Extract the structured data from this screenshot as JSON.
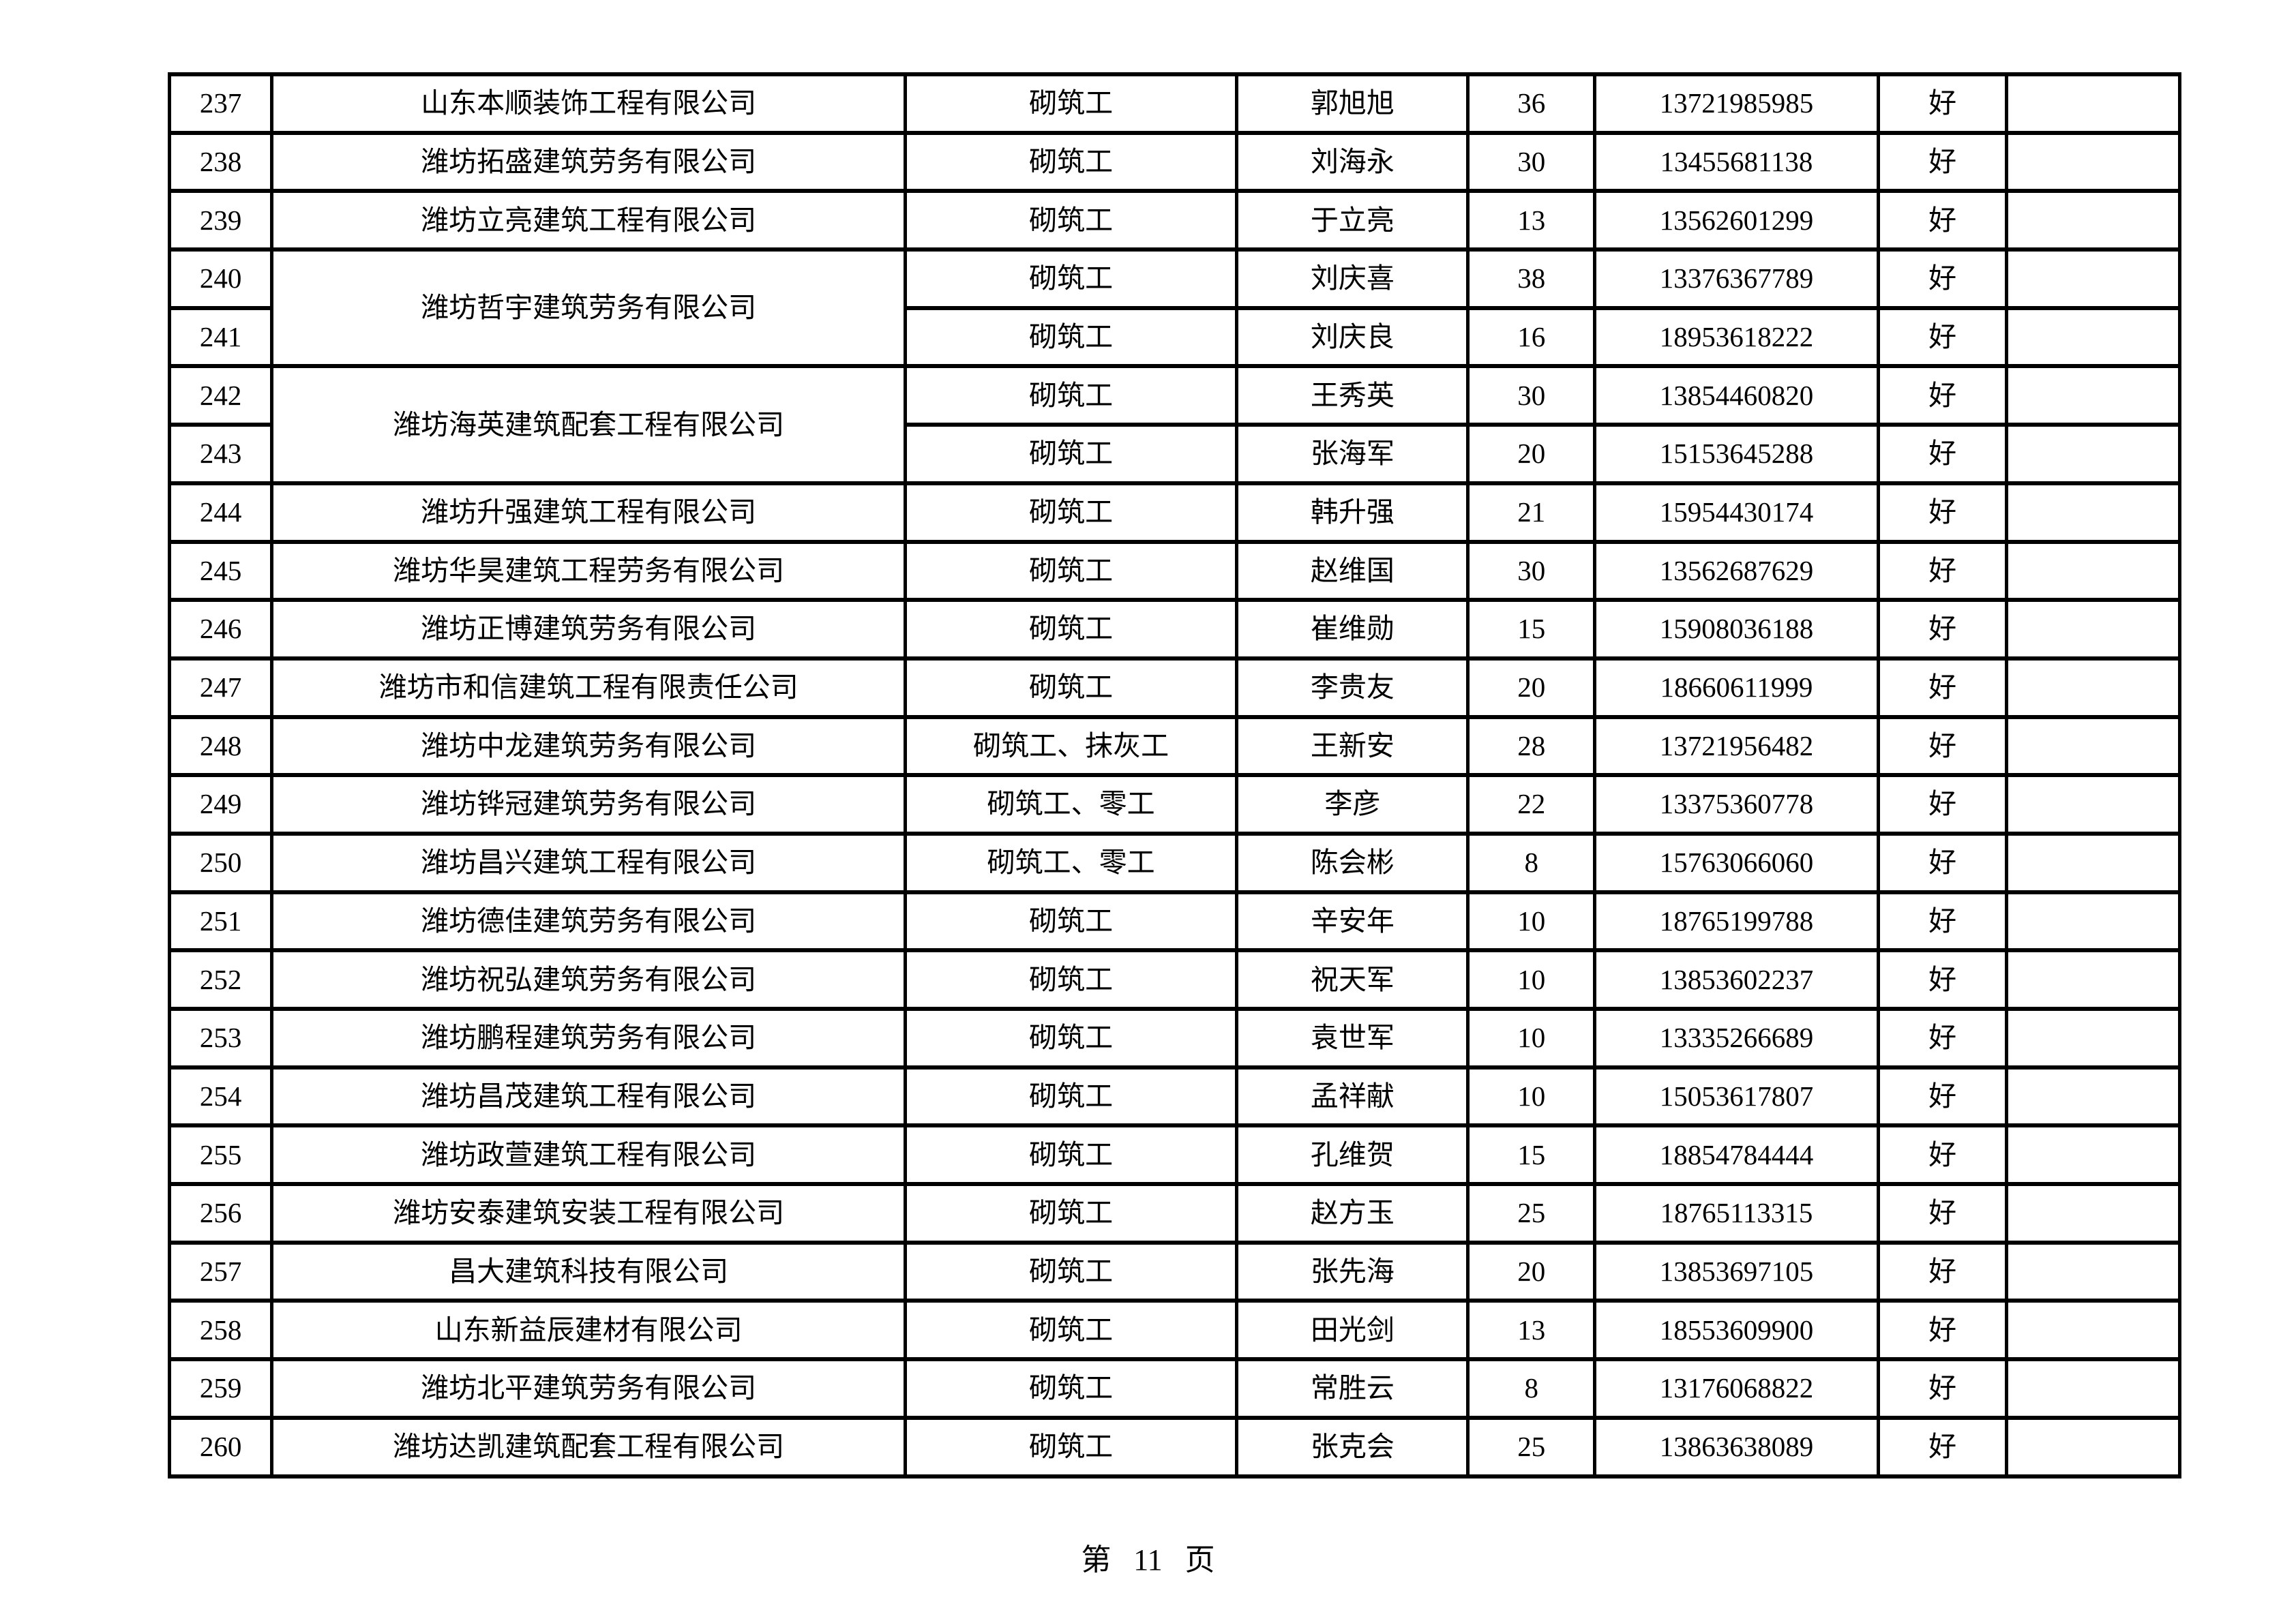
{
  "footer": {
    "text": "第 11 页"
  },
  "table": {
    "column_keys": [
      "serial",
      "company",
      "work_type",
      "person",
      "count",
      "phone",
      "rating",
      "remark"
    ],
    "column_widths_pct": [
      5.1,
      31.5,
      16.5,
      11.5,
      6.3,
      14.1,
      6.4,
      8.6
    ],
    "rows": [
      {
        "no": "237",
        "company": "山东本顺装饰工程有限公司",
        "company_rowspan": 1,
        "work_type": "砌筑工",
        "person": "郭旭旭",
        "count": "36",
        "phone": "13721985985",
        "rating": "好",
        "remark": ""
      },
      {
        "no": "238",
        "company": "潍坊拓盛建筑劳务有限公司",
        "company_rowspan": 1,
        "work_type": "砌筑工",
        "person": "刘海永",
        "count": "30",
        "phone": "13455681138",
        "rating": "好",
        "remark": ""
      },
      {
        "no": "239",
        "company": "潍坊立亮建筑工程有限公司",
        "company_rowspan": 1,
        "work_type": "砌筑工",
        "person": "于立亮",
        "count": "13",
        "phone": "13562601299",
        "rating": "好",
        "remark": ""
      },
      {
        "no": "240",
        "company": "潍坊哲宇建筑劳务有限公司",
        "company_rowspan": 2,
        "work_type": "砌筑工",
        "person": "刘庆喜",
        "count": "38",
        "phone": "13376367789",
        "rating": "好",
        "remark": ""
      },
      {
        "no": "241",
        "company": null,
        "company_rowspan": 0,
        "work_type": "砌筑工",
        "person": "刘庆良",
        "count": "16",
        "phone": "18953618222",
        "rating": "好",
        "remark": ""
      },
      {
        "no": "242",
        "company": "潍坊海英建筑配套工程有限公司",
        "company_rowspan": 2,
        "work_type": "砌筑工",
        "person": "王秀英",
        "count": "30",
        "phone": "13854460820",
        "rating": "好",
        "remark": ""
      },
      {
        "no": "243",
        "company": null,
        "company_rowspan": 0,
        "work_type": "砌筑工",
        "person": "张海军",
        "count": "20",
        "phone": "15153645288",
        "rating": "好",
        "remark": ""
      },
      {
        "no": "244",
        "company": "潍坊升强建筑工程有限公司",
        "company_rowspan": 1,
        "work_type": "砌筑工",
        "person": "韩升强",
        "count": "21",
        "phone": "15954430174",
        "rating": "好",
        "remark": ""
      },
      {
        "no": "245",
        "company": "潍坊华昊建筑工程劳务有限公司",
        "company_rowspan": 1,
        "work_type": "砌筑工",
        "person": "赵维国",
        "count": "30",
        "phone": "13562687629",
        "rating": "好",
        "remark": ""
      },
      {
        "no": "246",
        "company": "潍坊正博建筑劳务有限公司",
        "company_rowspan": 1,
        "work_type": "砌筑工",
        "person": "崔维勋",
        "count": "15",
        "phone": "15908036188",
        "rating": "好",
        "remark": ""
      },
      {
        "no": "247",
        "company": "潍坊市和信建筑工程有限责任公司",
        "company_rowspan": 1,
        "work_type": "砌筑工",
        "person": "李贵友",
        "count": "20",
        "phone": "18660611999",
        "rating": "好",
        "remark": ""
      },
      {
        "no": "248",
        "company": "潍坊中龙建筑劳务有限公司",
        "company_rowspan": 1,
        "work_type": "砌筑工、抹灰工",
        "person": "王新安",
        "count": "28",
        "phone": "13721956482",
        "rating": "好",
        "remark": ""
      },
      {
        "no": "249",
        "company": "潍坊铧冠建筑劳务有限公司",
        "company_rowspan": 1,
        "work_type": "砌筑工、零工",
        "person": "李彦",
        "count": "22",
        "phone": "13375360778",
        "rating": "好",
        "remark": ""
      },
      {
        "no": "250",
        "company": "潍坊昌兴建筑工程有限公司",
        "company_rowspan": 1,
        "work_type": "砌筑工、零工",
        "person": "陈会彬",
        "count": "8",
        "phone": "15763066060",
        "rating": "好",
        "remark": ""
      },
      {
        "no": "251",
        "company": "潍坊德佳建筑劳务有限公司",
        "company_rowspan": 1,
        "work_type": "砌筑工",
        "person": "辛安年",
        "count": "10",
        "phone": "18765199788",
        "rating": "好",
        "remark": ""
      },
      {
        "no": "252",
        "company": "潍坊祝弘建筑劳务有限公司",
        "company_rowspan": 1,
        "work_type": "砌筑工",
        "person": "祝天军",
        "count": "10",
        "phone": "13853602237",
        "rating": "好",
        "remark": ""
      },
      {
        "no": "253",
        "company": "潍坊鹏程建筑劳务有限公司",
        "company_rowspan": 1,
        "work_type": "砌筑工",
        "person": "袁世军",
        "count": "10",
        "phone": "13335266689",
        "rating": "好",
        "remark": ""
      },
      {
        "no": "254",
        "company": "潍坊昌茂建筑工程有限公司",
        "company_rowspan": 1,
        "work_type": "砌筑工",
        "person": "孟祥献",
        "count": "10",
        "phone": "15053617807",
        "rating": "好",
        "remark": ""
      },
      {
        "no": "255",
        "company": "潍坊政萱建筑工程有限公司",
        "company_rowspan": 1,
        "work_type": "砌筑工",
        "person": "孔维贺",
        "count": "15",
        "phone": "18854784444",
        "rating": "好",
        "remark": ""
      },
      {
        "no": "256",
        "company": "潍坊安泰建筑安装工程有限公司",
        "company_rowspan": 1,
        "work_type": "砌筑工",
        "person": "赵方玉",
        "count": "25",
        "phone": "18765113315",
        "rating": "好",
        "remark": ""
      },
      {
        "no": "257",
        "company": "昌大建筑科技有限公司",
        "company_rowspan": 1,
        "work_type": "砌筑工",
        "person": "张先海",
        "count": "20",
        "phone": "13853697105",
        "rating": "好",
        "remark": ""
      },
      {
        "no": "258",
        "company": "山东新益辰建材有限公司",
        "company_rowspan": 1,
        "work_type": "砌筑工",
        "person": "田光剑",
        "count": "13",
        "phone": "18553609900",
        "rating": "好",
        "remark": ""
      },
      {
        "no": "259",
        "company": "潍坊北平建筑劳务有限公司",
        "company_rowspan": 1,
        "work_type": "砌筑工",
        "person": "常胜云",
        "count": "8",
        "phone": "13176068822",
        "rating": "好",
        "remark": ""
      },
      {
        "no": "260",
        "company": "潍坊达凯建筑配套工程有限公司",
        "company_rowspan": 1,
        "work_type": "砌筑工",
        "person": "张克会",
        "count": "25",
        "phone": "13863638089",
        "rating": "好",
        "remark": ""
      }
    ]
  }
}
